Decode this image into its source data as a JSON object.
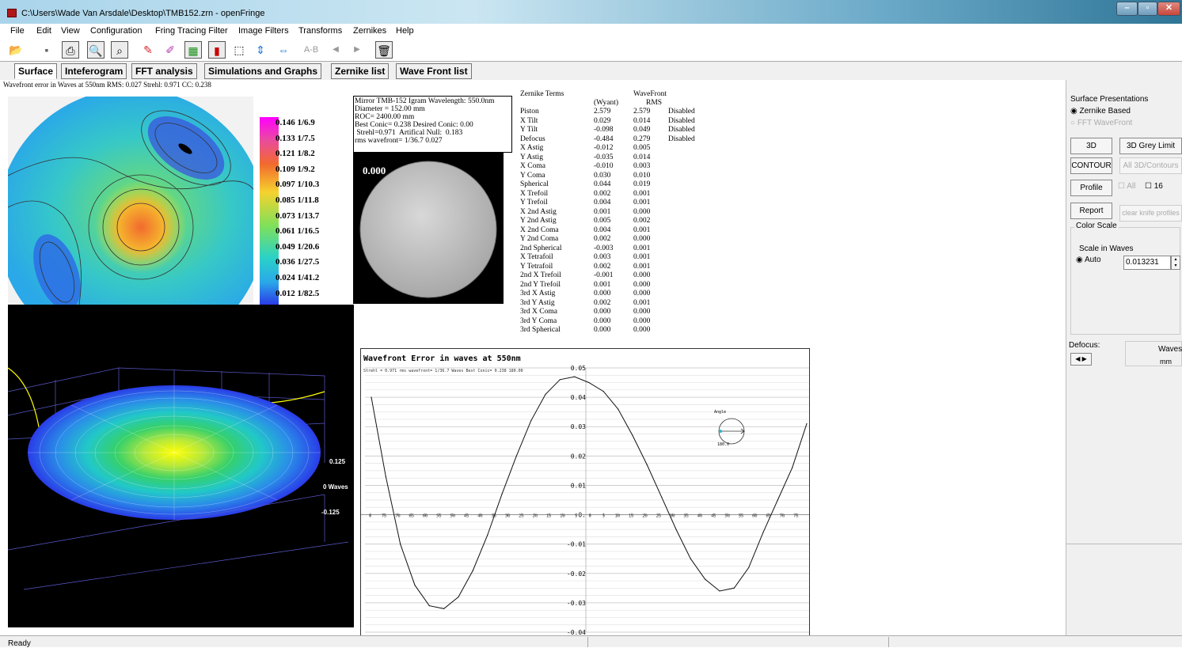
{
  "window": {
    "title": "C:\\Users\\Wade Van Arsdale\\Desktop\\TMB152.zrn - openFringe"
  },
  "menu": [
    "File",
    "Edit",
    "View",
    "Configuration",
    "Fring Tracing Filter",
    "Image Filters",
    "Transforms",
    "Zernikes",
    "Help"
  ],
  "toolbar": {
    "ab_label": "A-B"
  },
  "tabs": [
    "Surface",
    "Inteferogram",
    "FFT analysis",
    "Simulations and Graphs",
    "Zernike list",
    "Wave Front list"
  ],
  "surface": {
    "caption": "Wavefront error in Waves at 550nm  RMS: 0.027 Strehl: 0.971 CC: 0.238",
    "colorbar": [
      "0.146 1/6.9",
      "0.133 1/7.5",
      "0.121 1/8.2",
      "0.109 1/9.2",
      "0.097 1/10.3",
      "0.085 1/11.8",
      "0.073 1/13.7",
      "0.061 1/16.5",
      "0.049 1/20.6",
      "0.036 1/27.5",
      "0.024 1/41.2",
      "0.012 1/82.5"
    ]
  },
  "info": {
    "lines": [
      "Mirror TMB-152 Igram Wavelength:  550.0nm",
      "Diameter = 152.00 mm",
      "ROC= 2400.00 mm",
      "Best Conic= 0.238 Desired Conic:  0.00",
      " Strehl=0.971  Artifical Null:  0.183",
      "rms wavefront= 1/36.7  0.027"
    ]
  },
  "igram": {
    "label": "0.000"
  },
  "view3d": {
    "labels": [
      "0.125",
      "0 Waves",
      "-0.125"
    ]
  },
  "zernike": {
    "title": "Zernike Terms",
    "col_wavefront": "WaveFront",
    "col_wyant": "(Wyant)",
    "col_rms": "RMS",
    "rows": [
      [
        "Piston",
        "2.579",
        "2.579",
        "Disabled"
      ],
      [
        "X Tilt",
        "0.029",
        "0.014",
        "Disabled"
      ],
      [
        "Y Tilt",
        "-0.098",
        "0.049",
        "Disabled"
      ],
      [
        "Defocus",
        "-0.484",
        "0.279",
        "Disabled"
      ],
      [
        "X Astig",
        "-0.012",
        "0.005",
        ""
      ],
      [
        "Y Astig",
        "-0.035",
        "0.014",
        ""
      ],
      [
        "X Coma",
        "-0.010",
        "0.003",
        ""
      ],
      [
        "Y Coma",
        "0.030",
        "0.010",
        ""
      ],
      [
        "Spherical",
        "0.044",
        "0.019",
        ""
      ],
      [
        "X Trefoil",
        "0.002",
        "0.001",
        ""
      ],
      [
        "Y Trefoil",
        "0.004",
        "0.001",
        ""
      ],
      [
        "X 2nd Astig",
        "0.001",
        "0.000",
        ""
      ],
      [
        "Y 2nd Astig",
        "0.005",
        "0.002",
        ""
      ],
      [
        "X 2nd Coma",
        "0.004",
        "0.001",
        ""
      ],
      [
        "Y 2nd Coma",
        "0.002",
        "0.000",
        ""
      ],
      [
        "2nd Spherical",
        "-0.003",
        "0.001",
        ""
      ],
      [
        "X Tetrafoil",
        "0.003",
        "0.001",
        ""
      ],
      [
        "Y Tetrafoil",
        "0.002",
        "0.001",
        ""
      ],
      [
        "2nd X Trefoil",
        "-0.001",
        "0.000",
        ""
      ],
      [
        "2nd Y Trefoil",
        "0.001",
        "0.000",
        ""
      ],
      [
        "3rd X Astig",
        "0.000",
        "0.000",
        ""
      ],
      [
        "3rd Y Astig",
        "0.002",
        "0.001",
        ""
      ],
      [
        "3rd X Coma",
        "0.000",
        "0.000",
        ""
      ],
      [
        "3rd Y Coma",
        "0.000",
        "0.000",
        ""
      ],
      [
        "3rd Spherical",
        "0.000",
        "0.000",
        ""
      ]
    ]
  },
  "profile": {
    "title": "Wavefront Error in waves at 550nm",
    "subtitle": "Strehl = 0.971 rms wavefront= 1/36.7 Waves Best Conic= 0.238 180.00",
    "angle_label": "Angle",
    "angle_value": "180.0"
  },
  "chart_data": {
    "type": "line",
    "title": "Wavefront Error in waves at 550nm",
    "x": [
      -75,
      -70,
      -65,
      -60,
      -55,
      -50,
      -45,
      -40,
      -35,
      -30,
      -25,
      -20,
      -15,
      -10,
      -5,
      0,
      5,
      10,
      15,
      20,
      25,
      30,
      35,
      40,
      45,
      50,
      55,
      60,
      65,
      70,
      75
    ],
    "y": [
      0.04,
      0.013,
      -0.01,
      -0.024,
      -0.031,
      -0.032,
      -0.028,
      -0.019,
      -0.007,
      0.007,
      0.02,
      0.032,
      0.041,
      0.046,
      0.047,
      0.045,
      0.042,
      0.036,
      0.027,
      0.017,
      0.006,
      -0.005,
      -0.015,
      -0.022,
      -0.026,
      -0.025,
      -0.018,
      -0.006,
      0.005,
      0.016,
      0.031
    ],
    "x_ticks": [
      "0",
      "75",
      "70",
      "65",
      "60",
      "55",
      "50",
      "45",
      "40",
      "35",
      "30",
      "25",
      "20",
      "15",
      "10",
      "5",
      "0",
      "5",
      "10",
      "15",
      "20",
      "25",
      "30",
      "35",
      "40",
      "45",
      "50",
      "55",
      "60",
      "65",
      "70",
      "75"
    ],
    "y_ticks": [
      "0.05",
      "0.04",
      "0.03",
      "0.02",
      "0.01",
      "0.",
      "-0.01",
      "-0.02",
      "-0.03",
      "-0.04"
    ],
    "xlim": [
      -75,
      75
    ],
    "ylim": [
      -0.04,
      0.05
    ],
    "grid": true
  },
  "right_panel": {
    "surface_presentations": "Surface Presentations",
    "zernike_based": "Zernike Based",
    "fft_wavefront": "FFT WaveFront",
    "btn_3d": "3D",
    "btn_3d_grey": "3D Grey Limit",
    "btn_contour": "CONTOUR",
    "btn_all3d": "All 3D/Contours",
    "btn_profile": "Profile",
    "chk_all": "All",
    "chk_16": "16",
    "btn_report": "Report",
    "btn_clear_knife": "clear knife profiles",
    "color_scale": "Color Scale",
    "scale_in_waves": "Scale in Waves",
    "auto": "Auto",
    "scale_value": "0.013231",
    "defocus": "Defocus:",
    "waves": "Waves",
    "mm": "mm"
  },
  "status": {
    "text": "Ready"
  },
  "colors": {
    "title_bar": "#bcd9ea",
    "panel_bg": "#f0f0f0",
    "close_btn": "#c8463a"
  }
}
